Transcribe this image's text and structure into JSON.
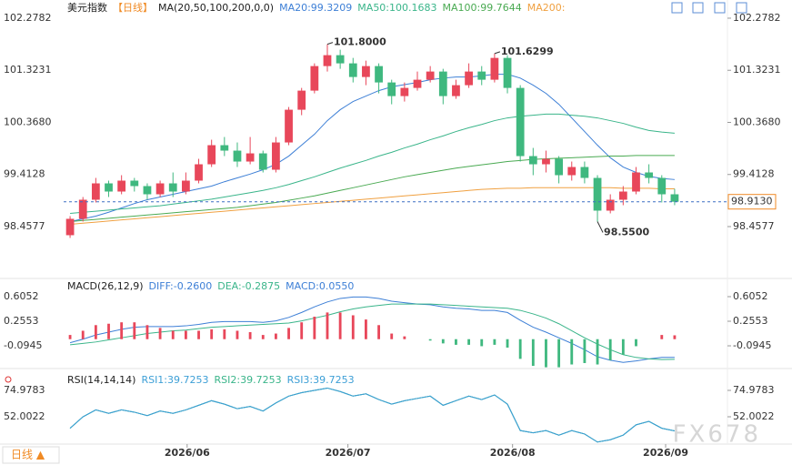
{
  "chart_data": [
    {
      "type": "candlestick",
      "title": "美元指数",
      "period": "【日线】",
      "ma_label": "MA(20,50,100,200,0,0)",
      "up_color": "#e8475a",
      "down_color": "#3fb87f",
      "xlim": [
        -0.5,
        47.5
      ],
      "ylim": [
        97.607,
        102.478
      ],
      "yticks": [
        102.2782,
        101.3231,
        {
          "value": 100.368,
          "label": "100.3680"
        },
        99.4128,
        98.4577
      ],
      "xticks": [
        {
          "value": 9.1,
          "label": "2026/06"
        },
        {
          "value": 21.6,
          "label": "2026/07"
        },
        {
          "value": 34.4,
          "label": "2026/08"
        },
        {
          "value": 46.3,
          "label": "2026/09"
        }
      ],
      "last_price": {
        "value": 98.913,
        "label": "98.9130"
      },
      "annotations": [
        {
          "label": "101.8000",
          "index": 20,
          "value": 101.8,
          "color": "#e8475a"
        },
        {
          "label": "101.6299",
          "index": 33,
          "value": 101.6299,
          "color": "#e8475a"
        },
        {
          "label": "98.5500",
          "index": 41,
          "value": 98.55,
          "color": "#3fb87f"
        }
      ],
      "candles": [
        [
          98.3,
          98.65,
          98.25,
          98.6
        ],
        [
          98.6,
          99.0,
          98.55,
          98.95
        ],
        [
          98.95,
          99.35,
          98.9,
          99.25
        ],
        [
          99.25,
          99.3,
          99.0,
          99.1
        ],
        [
          99.1,
          99.4,
          99.05,
          99.3
        ],
        [
          99.3,
          99.35,
          99.1,
          99.2
        ],
        [
          99.2,
          99.25,
          98.95,
          99.05
        ],
        [
          99.05,
          99.3,
          99.0,
          99.25
        ],
        [
          99.25,
          99.45,
          99.0,
          99.1
        ],
        [
          99.1,
          99.45,
          99.05,
          99.3
        ],
        [
          99.3,
          99.7,
          99.25,
          99.6
        ],
        [
          99.6,
          100.05,
          99.55,
          99.95
        ],
        [
          99.95,
          100.1,
          99.75,
          99.85
        ],
        [
          99.85,
          100.0,
          99.55,
          99.65
        ],
        [
          99.65,
          100.1,
          99.6,
          99.8
        ],
        [
          99.8,
          99.85,
          99.45,
          99.5
        ],
        [
          99.5,
          100.1,
          99.45,
          100.0
        ],
        [
          100.0,
          100.65,
          99.95,
          100.6
        ],
        [
          100.6,
          101.0,
          100.5,
          100.95
        ],
        [
          100.95,
          101.45,
          100.9,
          101.4
        ],
        [
          101.4,
          101.8,
          101.3,
          101.6
        ],
        [
          101.6,
          101.7,
          101.35,
          101.45
        ],
        [
          101.45,
          101.55,
          101.1,
          101.2
        ],
        [
          101.2,
          101.5,
          101.05,
          101.4
        ],
        [
          101.4,
          101.45,
          100.9,
          101.1
        ],
        [
          101.1,
          101.15,
          100.7,
          100.85
        ],
        [
          100.85,
          101.1,
          100.75,
          101.0
        ],
        [
          101.0,
          101.3,
          100.95,
          101.15
        ],
        [
          101.15,
          101.4,
          101.1,
          101.3
        ],
        [
          101.3,
          101.35,
          100.7,
          100.85
        ],
        [
          100.85,
          101.15,
          100.8,
          101.05
        ],
        [
          101.05,
          101.45,
          101.0,
          101.3
        ],
        [
          101.3,
          101.4,
          101.05,
          101.15
        ],
        [
          101.15,
          101.6299,
          101.1,
          101.55
        ],
        [
          101.55,
          101.6,
          100.9,
          101.0
        ],
        [
          101.0,
          101.05,
          99.65,
          99.75
        ],
        [
          99.75,
          99.9,
          99.4,
          99.6
        ],
        [
          99.6,
          99.85,
          99.45,
          99.7
        ],
        [
          99.7,
          99.75,
          99.25,
          99.4
        ],
        [
          99.4,
          99.65,
          99.3,
          99.55
        ],
        [
          99.55,
          99.65,
          99.25,
          99.35
        ],
        [
          99.35,
          99.4,
          98.55,
          98.75
        ],
        [
          98.75,
          99.05,
          98.7,
          98.95
        ],
        [
          98.95,
          99.2,
          98.85,
          99.1
        ],
        [
          99.1,
          99.55,
          99.05,
          99.45
        ],
        [
          99.45,
          99.6,
          99.25,
          99.35
        ],
        [
          99.35,
          99.4,
          98.9,
          99.05
        ],
        [
          99.05,
          99.15,
          98.85,
          98.913
        ]
      ],
      "series": [
        {
          "name": "MA20:99.3209",
          "color": "#3d7fd6",
          "values": [
            98.55,
            98.6,
            98.65,
            98.72,
            98.8,
            98.88,
            98.95,
            99.0,
            99.05,
            99.1,
            99.15,
            99.2,
            99.28,
            99.35,
            99.42,
            99.5,
            99.6,
            99.75,
            99.95,
            100.15,
            100.4,
            100.6,
            100.75,
            100.85,
            100.95,
            101.02,
            101.06,
            101.1,
            101.15,
            101.18,
            101.2,
            101.2,
            101.22,
            101.25,
            101.25,
            101.18,
            101.05,
            100.9,
            100.7,
            100.45,
            100.2,
            99.95,
            99.72,
            99.55,
            99.45,
            99.38,
            99.34,
            99.32
          ]
        },
        {
          "name": "MA50:100.1683",
          "color": "#3ab58a",
          "values": [
            98.7,
            98.72,
            98.74,
            98.76,
            98.78,
            98.8,
            98.82,
            98.84,
            98.87,
            98.9,
            98.93,
            98.96,
            99.0,
            99.04,
            99.08,
            99.12,
            99.17,
            99.23,
            99.3,
            99.37,
            99.45,
            99.53,
            99.6,
            99.67,
            99.75,
            99.82,
            99.9,
            99.97,
            100.05,
            100.12,
            100.2,
            100.27,
            100.33,
            100.4,
            100.45,
            100.48,
            100.5,
            100.52,
            100.52,
            100.5,
            100.48,
            100.45,
            100.4,
            100.35,
            100.28,
            100.22,
            100.19,
            100.17
          ]
        },
        {
          "name": "MA100:99.7644",
          "color": "#4aaa52",
          "values": [
            98.55,
            98.57,
            98.59,
            98.61,
            98.63,
            98.65,
            98.67,
            98.69,
            98.71,
            98.73,
            98.75,
            98.77,
            98.79,
            98.81,
            98.84,
            98.87,
            98.9,
            98.94,
            98.98,
            99.02,
            99.07,
            99.12,
            99.17,
            99.22,
            99.27,
            99.32,
            99.37,
            99.41,
            99.45,
            99.49,
            99.53,
            99.56,
            99.59,
            99.62,
            99.65,
            99.67,
            99.69,
            99.7,
            99.71,
            99.72,
            99.73,
            99.74,
            99.75,
            99.75,
            99.76,
            99.76,
            99.76,
            99.76
          ]
        },
        {
          "name": "MA200:",
          "color": "#f0a040",
          "values": [
            98.5,
            98.52,
            98.54,
            98.56,
            98.58,
            98.6,
            98.62,
            98.64,
            98.66,
            98.68,
            98.7,
            98.72,
            98.74,
            98.76,
            98.78,
            98.8,
            98.82,
            98.84,
            98.86,
            98.88,
            98.9,
            98.92,
            98.94,
            98.96,
            98.98,
            99.0,
            99.02,
            99.04,
            99.06,
            99.08,
            99.1,
            99.12,
            99.14,
            99.15,
            99.16,
            99.16,
            99.17,
            99.17,
            99.17,
            99.17,
            99.17,
            99.17,
            99.17,
            99.16,
            99.16,
            99.16,
            99.15,
            99.15
          ]
        }
      ]
    },
    {
      "type": "macd",
      "title": "MACD(26,12,9)",
      "xlim": [
        -0.5,
        47.5
      ],
      "ylim": [
        -0.418,
        0.8125
      ],
      "yticks": [
        0.6052,
        0.2553,
        -0.0945
      ],
      "up_color": "#e8475a",
      "down_color": "#3fb87f",
      "series": [
        {
          "name": "DIFF:-0.2600",
          "color": "#3d7fd6",
          "values": [
            -0.05,
            0.0,
            0.06,
            0.1,
            0.14,
            0.17,
            0.18,
            0.18,
            0.18,
            0.19,
            0.21,
            0.24,
            0.25,
            0.25,
            0.25,
            0.24,
            0.26,
            0.31,
            0.38,
            0.46,
            0.53,
            0.58,
            0.6,
            0.6,
            0.58,
            0.54,
            0.52,
            0.5,
            0.49,
            0.46,
            0.44,
            0.43,
            0.41,
            0.41,
            0.38,
            0.27,
            0.17,
            0.1,
            0.02,
            -0.06,
            -0.15,
            -0.25,
            -0.3,
            -0.33,
            -0.31,
            -0.28,
            -0.26,
            -0.26
          ]
        },
        {
          "name": "DEA:-0.2875",
          "color": "#3ab58a",
          "values": [
            -0.08,
            -0.06,
            -0.04,
            -0.01,
            0.02,
            0.05,
            0.08,
            0.1,
            0.12,
            0.13,
            0.15,
            0.17,
            0.18,
            0.19,
            0.2,
            0.21,
            0.22,
            0.23,
            0.26,
            0.3,
            0.34,
            0.39,
            0.43,
            0.46,
            0.48,
            0.5,
            0.5,
            0.5,
            0.5,
            0.49,
            0.48,
            0.47,
            0.46,
            0.45,
            0.44,
            0.41,
            0.36,
            0.3,
            0.22,
            0.12,
            0.02,
            -0.07,
            -0.15,
            -0.22,
            -0.26,
            -0.28,
            -0.29,
            -0.2875
          ]
        },
        {
          "name": "MACD:0.0550",
          "color": "#3d7fd6",
          "type": "bar",
          "values": [
            0.06,
            0.12,
            0.2,
            0.22,
            0.24,
            0.24,
            0.2,
            0.16,
            0.12,
            0.12,
            0.12,
            0.14,
            0.14,
            0.12,
            0.1,
            0.06,
            0.08,
            0.16,
            0.24,
            0.32,
            0.38,
            0.38,
            0.34,
            0.28,
            0.2,
            0.08,
            0.04,
            0,
            -0.02,
            -0.06,
            -0.08,
            -0.08,
            -0.1,
            -0.08,
            -0.12,
            -0.28,
            -0.38,
            -0.4,
            -0.4,
            -0.36,
            -0.34,
            -0.36,
            -0.3,
            -0.22,
            -0.1,
            0.0,
            0.06,
            0.055
          ]
        }
      ]
    },
    {
      "type": "line",
      "title": "RSI(14,14,14)",
      "xlim": [
        -0.5,
        47.5
      ],
      "ylim": [
        28.23,
        91.62
      ],
      "yticks": [
        74.9783,
        52.0022
      ],
      "series": [
        {
          "name": "RSI1:39.7253",
          "color": "#3d9fd6",
          "values": [
            42,
            52,
            58,
            55,
            58,
            56,
            53,
            57,
            55,
            58,
            62,
            66,
            63,
            59,
            61,
            57,
            64,
            70,
            73,
            75,
            77,
            74,
            70,
            72,
            67,
            63,
            66,
            68,
            70,
            62,
            66,
            70,
            67,
            71,
            63,
            40,
            38,
            40,
            36,
            40,
            37,
            30,
            32,
            36,
            45,
            48,
            42,
            39.7253
          ]
        },
        {
          "name": "RSI2:39.7253",
          "color": "#3ab58a",
          "values": [
            42,
            52,
            58,
            55,
            58,
            56,
            53,
            57,
            55,
            58,
            62,
            66,
            63,
            59,
            61,
            57,
            64,
            70,
            73,
            75,
            77,
            74,
            70,
            72,
            67,
            63,
            66,
            68,
            70,
            62,
            66,
            70,
            67,
            71,
            63,
            40,
            38,
            40,
            36,
            40,
            37,
            30,
            32,
            36,
            45,
            48,
            42,
            39.7253
          ]
        },
        {
          "name": "RSI3:39.7253",
          "color": "#3d9fd6",
          "values": [
            42,
            52,
            58,
            55,
            58,
            56,
            53,
            57,
            55,
            58,
            62,
            66,
            63,
            59,
            61,
            57,
            64,
            70,
            73,
            75,
            77,
            74,
            70,
            72,
            67,
            63,
            66,
            68,
            70,
            62,
            66,
            70,
            67,
            71,
            63,
            40,
            38,
            40,
            36,
            40,
            37,
            30,
            32,
            36,
            45,
            48,
            42,
            39.7253
          ]
        }
      ]
    }
  ],
  "footer": {
    "period_button": "日线 ▲"
  },
  "watermark": "FX678"
}
